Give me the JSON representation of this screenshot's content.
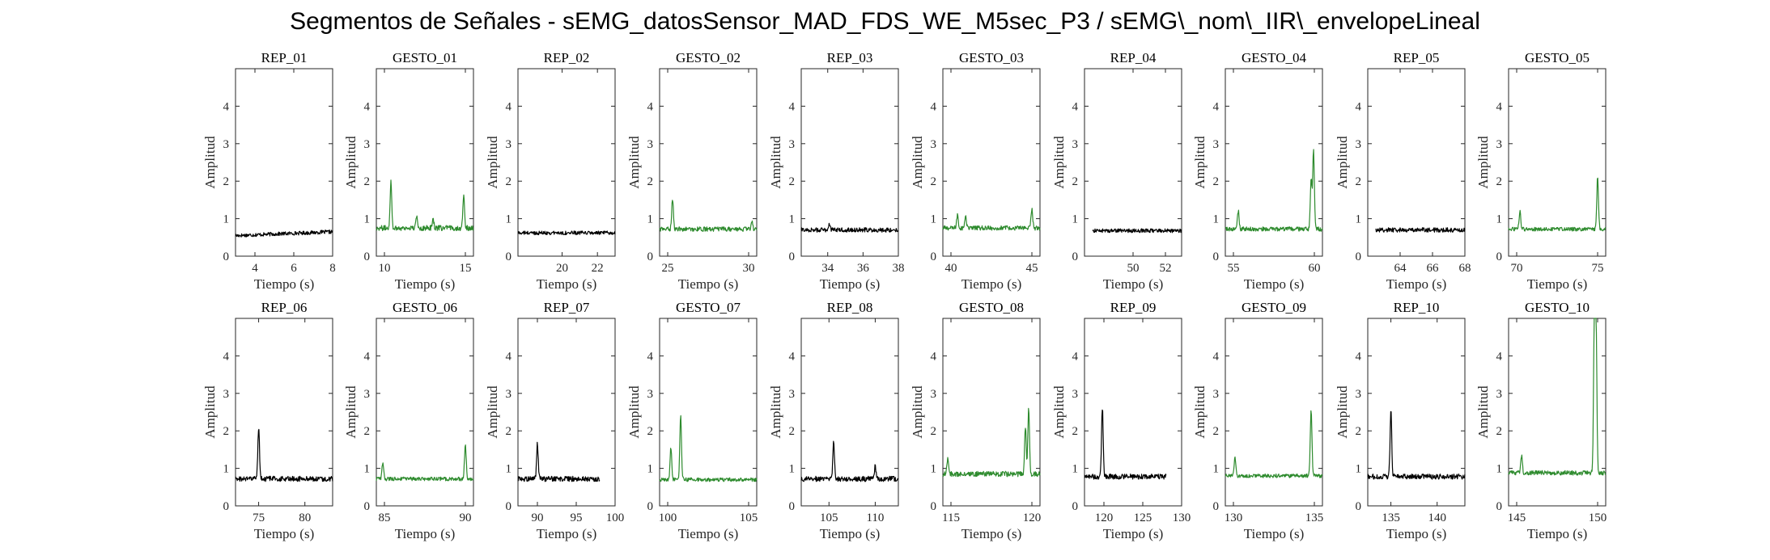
{
  "figure_title": "Segmentos de Señales - sEMG_datosSensor_MAD_FDS_WE_M5sec_P3 / sEMG\\_nom\\_IIR\\_envelopeLineal",
  "colors": {
    "rep": "#000000",
    "gesto": "#2e8b2e",
    "axis": "#262626"
  },
  "chart_data": [
    {
      "type": "line",
      "title": "REP_01",
      "xlabel": "Tiempo (s)",
      "ylabel": "Amplitud",
      "xlim": [
        3,
        8
      ],
      "ylim": [
        0,
        5
      ],
      "xticks": [
        4,
        6,
        8
      ],
      "yticks": [
        0,
        1,
        2,
        3,
        4
      ],
      "x_range": [
        3,
        8
      ],
      "baseline": 0.55,
      "trend": 0.1,
      "noise": 0.05,
      "peaks": [],
      "color": "rep"
    },
    {
      "type": "line",
      "title": "GESTO_01",
      "xlabel": "Tiempo (s)",
      "ylabel": "Amplitud",
      "xlim": [
        9.5,
        15.5
      ],
      "ylim": [
        0,
        5
      ],
      "xticks": [
        10,
        15
      ],
      "yticks": [
        0,
        1,
        2,
        3,
        4
      ],
      "x_range": [
        9.5,
        15.5
      ],
      "baseline": 0.75,
      "trend": 0,
      "noise": 0.07,
      "peaks": [
        [
          10.4,
          2.0
        ],
        [
          14.9,
          1.6
        ],
        [
          12.0,
          1.05
        ],
        [
          13.0,
          1.0
        ]
      ],
      "color": "gesto"
    },
    {
      "type": "line",
      "title": "REP_02",
      "xlabel": "Tiempo (s)",
      "ylabel": "Amplitud",
      "xlim": [
        17.5,
        23
      ],
      "ylim": [
        0,
        5
      ],
      "xticks": [
        20,
        22
      ],
      "yticks": [
        0,
        1,
        2,
        3,
        4
      ],
      "x_range": [
        17.5,
        23
      ],
      "baseline": 0.62,
      "trend": 0,
      "noise": 0.05,
      "peaks": [],
      "color": "rep"
    },
    {
      "type": "line",
      "title": "GESTO_02",
      "xlabel": "Tiempo (s)",
      "ylabel": "Amplitud",
      "xlim": [
        24.5,
        30.5
      ],
      "ylim": [
        0,
        5
      ],
      "xticks": [
        25,
        30
      ],
      "yticks": [
        0,
        1,
        2,
        3,
        4
      ],
      "x_range": [
        24.5,
        30.5
      ],
      "baseline": 0.72,
      "trend": 0,
      "noise": 0.06,
      "peaks": [
        [
          25.3,
          1.55
        ],
        [
          30.2,
          0.95
        ]
      ],
      "color": "gesto"
    },
    {
      "type": "line",
      "title": "REP_03",
      "xlabel": "Tiempo (s)",
      "ylabel": "Amplitud",
      "xlim": [
        32.5,
        38
      ],
      "ylim": [
        0,
        5
      ],
      "xticks": [
        34,
        36,
        38
      ],
      "yticks": [
        0,
        1,
        2,
        3,
        4
      ],
      "x_range": [
        32.5,
        38
      ],
      "baseline": 0.7,
      "trend": 0,
      "noise": 0.06,
      "peaks": [
        [
          34.1,
          0.88
        ]
      ],
      "color": "rep"
    },
    {
      "type": "line",
      "title": "GESTO_03",
      "xlabel": "Tiempo (s)",
      "ylabel": "Amplitud",
      "xlim": [
        39.5,
        45.5
      ],
      "ylim": [
        0,
        5
      ],
      "xticks": [
        40,
        45
      ],
      "yticks": [
        0,
        1,
        2,
        3,
        4
      ],
      "x_range": [
        39.5,
        45.5
      ],
      "baseline": 0.75,
      "trend": 0,
      "noise": 0.06,
      "peaks": [
        [
          40.4,
          1.1
        ],
        [
          40.9,
          1.05
        ],
        [
          45.0,
          1.25
        ]
      ],
      "color": "gesto"
    },
    {
      "type": "line",
      "title": "REP_04",
      "xlabel": "Tiempo (s)",
      "ylabel": "Amplitud",
      "xlim": [
        47,
        53
      ],
      "ylim": [
        0,
        5
      ],
      "xticks": [
        50,
        52
      ],
      "yticks": [
        0,
        1,
        2,
        3,
        4
      ],
      "x_range": [
        47.5,
        53
      ],
      "baseline": 0.68,
      "trend": 0,
      "noise": 0.05,
      "peaks": [],
      "color": "rep"
    },
    {
      "type": "line",
      "title": "GESTO_04",
      "xlabel": "Tiempo (s)",
      "ylabel": "Amplitud",
      "xlim": [
        54.5,
        60.5
      ],
      "ylim": [
        0,
        5
      ],
      "xticks": [
        55,
        60
      ],
      "yticks": [
        0,
        1,
        2,
        3,
        4
      ],
      "x_range": [
        54.5,
        60.5
      ],
      "baseline": 0.72,
      "trend": 0,
      "noise": 0.06,
      "peaks": [
        [
          55.3,
          1.2
        ],
        [
          59.8,
          2.0
        ],
        [
          59.95,
          2.8
        ]
      ],
      "color": "gesto"
    },
    {
      "type": "line",
      "title": "REP_05",
      "xlabel": "Tiempo (s)",
      "ylabel": "Amplitud",
      "xlim": [
        62,
        68
      ],
      "ylim": [
        0,
        5
      ],
      "xticks": [
        64,
        66,
        68
      ],
      "yticks": [
        0,
        1,
        2,
        3,
        4
      ],
      "x_range": [
        62.5,
        68
      ],
      "baseline": 0.7,
      "trend": 0,
      "noise": 0.06,
      "peaks": [],
      "color": "rep"
    },
    {
      "type": "line",
      "title": "GESTO_05",
      "xlabel": "Tiempo (s)",
      "ylabel": "Amplitud",
      "xlim": [
        69.5,
        75.5
      ],
      "ylim": [
        0,
        5
      ],
      "xticks": [
        70,
        75
      ],
      "yticks": [
        0,
        1,
        2,
        3,
        4
      ],
      "x_range": [
        69.5,
        75.5
      ],
      "baseline": 0.72,
      "trend": 0,
      "noise": 0.05,
      "peaks": [
        [
          70.2,
          1.2
        ],
        [
          75.0,
          2.1
        ]
      ],
      "color": "gesto"
    },
    {
      "type": "line",
      "title": "REP_06",
      "xlabel": "Tiempo (s)",
      "ylabel": "Amplitud",
      "xlim": [
        72.5,
        83
      ],
      "ylim": [
        0,
        5
      ],
      "xticks": [
        75,
        80
      ],
      "yticks": [
        0,
        1,
        2,
        3,
        4
      ],
      "x_range": [
        72.5,
        83
      ],
      "baseline": 0.72,
      "trend": 0,
      "noise": 0.07,
      "peaks": [
        [
          75.0,
          2.1
        ]
      ],
      "color": "rep"
    },
    {
      "type": "line",
      "title": "GESTO_06",
      "xlabel": "Tiempo (s)",
      "ylabel": "Amplitud",
      "xlim": [
        84.5,
        90.5
      ],
      "ylim": [
        0,
        5
      ],
      "xticks": [
        85,
        90
      ],
      "yticks": [
        0,
        1,
        2,
        3,
        4
      ],
      "x_range": [
        84.5,
        90.5
      ],
      "baseline": 0.72,
      "trend": 0,
      "noise": 0.05,
      "peaks": [
        [
          84.9,
          1.15
        ],
        [
          90.0,
          1.65
        ]
      ],
      "color": "gesto"
    },
    {
      "type": "line",
      "title": "REP_07",
      "xlabel": "Tiempo (s)",
      "ylabel": "Amplitud",
      "xlim": [
        87.5,
        100
      ],
      "ylim": [
        0,
        5
      ],
      "xticks": [
        90,
        95,
        100
      ],
      "yticks": [
        0,
        1,
        2,
        3,
        4
      ],
      "x_range": [
        87.5,
        98
      ],
      "baseline": 0.72,
      "trend": 0,
      "noise": 0.07,
      "peaks": [
        [
          90.0,
          1.65
        ]
      ],
      "color": "rep"
    },
    {
      "type": "line",
      "title": "GESTO_07",
      "xlabel": "Tiempo (s)",
      "ylabel": "Amplitud",
      "xlim": [
        99.5,
        105.5
      ],
      "ylim": [
        0,
        5
      ],
      "xticks": [
        100,
        105
      ],
      "yticks": [
        0,
        1,
        2,
        3,
        4
      ],
      "x_range": [
        99.5,
        105.5
      ],
      "baseline": 0.7,
      "trend": 0,
      "noise": 0.05,
      "peaks": [
        [
          100.2,
          1.55
        ],
        [
          100.8,
          2.4
        ]
      ],
      "color": "gesto"
    },
    {
      "type": "line",
      "title": "REP_08",
      "xlabel": "Tiempo (s)",
      "ylabel": "Amplitud",
      "xlim": [
        102,
        112.5
      ],
      "ylim": [
        0,
        5
      ],
      "xticks": [
        105,
        110
      ],
      "yticks": [
        0,
        1,
        2,
        3,
        4
      ],
      "x_range": [
        102,
        112.5
      ],
      "baseline": 0.72,
      "trend": 0,
      "noise": 0.07,
      "peaks": [
        [
          105.5,
          1.75
        ],
        [
          110.0,
          1.05
        ]
      ],
      "color": "rep"
    },
    {
      "type": "line",
      "title": "GESTO_08",
      "xlabel": "Tiempo (s)",
      "ylabel": "Amplitud",
      "xlim": [
        114.5,
        120.5
      ],
      "ylim": [
        0,
        5
      ],
      "xticks": [
        115,
        120
      ],
      "yticks": [
        0,
        1,
        2,
        3,
        4
      ],
      "x_range": [
        114.5,
        120.5
      ],
      "baseline": 0.85,
      "trend": 0,
      "noise": 0.07,
      "peaks": [
        [
          114.8,
          1.25
        ],
        [
          119.8,
          2.6
        ],
        [
          119.6,
          2.1
        ]
      ],
      "color": "gesto"
    },
    {
      "type": "line",
      "title": "REP_09",
      "xlabel": "Tiempo (s)",
      "ylabel": "Amplitud",
      "xlim": [
        117.5,
        130
      ],
      "ylim": [
        0,
        5
      ],
      "xticks": [
        120,
        125,
        130
      ],
      "yticks": [
        0,
        1,
        2,
        3,
        4
      ],
      "x_range": [
        117.5,
        128
      ],
      "baseline": 0.78,
      "trend": 0,
      "noise": 0.07,
      "peaks": [
        [
          119.8,
          2.6
        ]
      ],
      "color": "rep"
    },
    {
      "type": "line",
      "title": "GESTO_09",
      "xlabel": "Tiempo (s)",
      "ylabel": "Amplitud",
      "xlim": [
        129.5,
        135.5
      ],
      "ylim": [
        0,
        5
      ],
      "xticks": [
        130,
        135
      ],
      "yticks": [
        0,
        1,
        2,
        3,
        4
      ],
      "x_range": [
        129.5,
        135.5
      ],
      "baseline": 0.8,
      "trend": 0,
      "noise": 0.05,
      "peaks": [
        [
          130.1,
          1.3
        ],
        [
          134.8,
          2.55
        ]
      ],
      "color": "gesto"
    },
    {
      "type": "line",
      "title": "REP_10",
      "xlabel": "Tiempo (s)",
      "ylabel": "Amplitud",
      "xlim": [
        132.5,
        143
      ],
      "ylim": [
        0,
        5
      ],
      "xticks": [
        135,
        140
      ],
      "yticks": [
        0,
        1,
        2,
        3,
        4
      ],
      "x_range": [
        132.5,
        143
      ],
      "baseline": 0.78,
      "trend": 0,
      "noise": 0.07,
      "peaks": [
        [
          135.0,
          2.55
        ]
      ],
      "color": "rep"
    },
    {
      "type": "line",
      "title": "GESTO_10",
      "xlabel": "Tiempo (s)",
      "ylabel": "Amplitud",
      "xlim": [
        144.5,
        150.5
      ],
      "ylim": [
        0,
        5
      ],
      "xticks": [
        145,
        150
      ],
      "yticks": [
        0,
        1,
        2,
        3,
        4
      ],
      "x_range": [
        144.5,
        150.5
      ],
      "baseline": 0.88,
      "trend": 0,
      "noise": 0.06,
      "peaks": [
        [
          145.3,
          1.35
        ],
        [
          149.8,
          4.9
        ],
        [
          149.9,
          5.0
        ]
      ],
      "color": "gesto"
    }
  ]
}
